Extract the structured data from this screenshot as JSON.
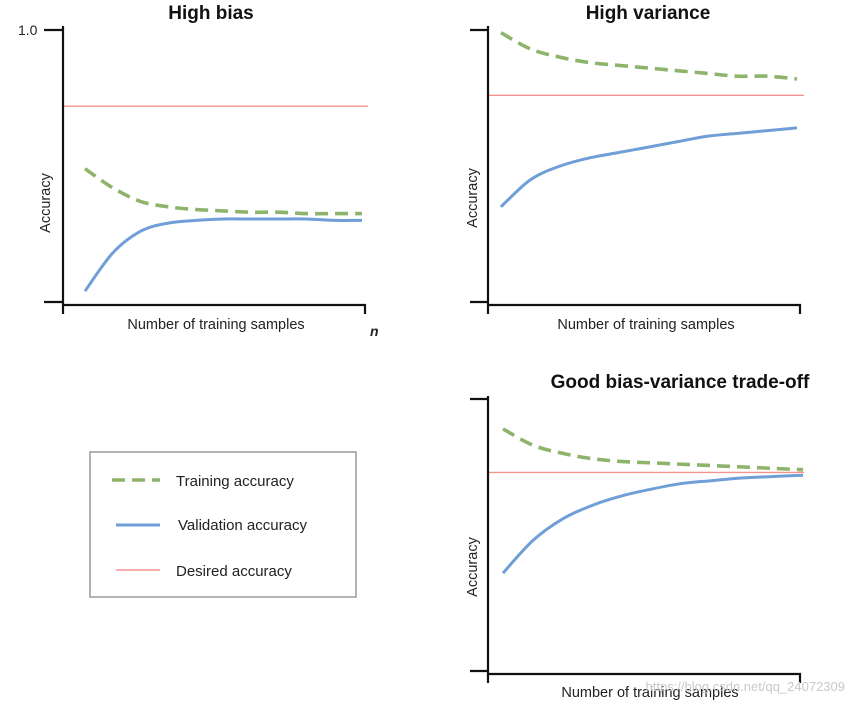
{
  "chart_data": [
    {
      "type": "line",
      "title": "High bias",
      "xlabel": "Number of training samples",
      "ylabel": "Accuracy",
      "y_tick_label": "1.0",
      "x_end_label": "n",
      "ylim": [
        0,
        1
      ],
      "x": [
        0.0,
        0.1,
        0.2,
        0.3,
        0.4,
        0.5,
        0.6,
        0.7,
        0.8,
        0.9,
        1.0
      ],
      "series": [
        {
          "name": "Training accuracy",
          "style": "dashed",
          "color": "#8db46a",
          "values": [
            0.49,
            0.42,
            0.37,
            0.35,
            0.34,
            0.335,
            0.33,
            0.33,
            0.325,
            0.325,
            0.325
          ]
        },
        {
          "name": "Validation accuracy",
          "style": "solid",
          "color": "#6f9fd6",
          "values": [
            0.04,
            0.18,
            0.26,
            0.29,
            0.3,
            0.305,
            0.305,
            0.305,
            0.305,
            0.3,
            0.3
          ]
        },
        {
          "name": "Desired accuracy",
          "style": "solid",
          "color": "#f3928f",
          "values": [
            0.72,
            0.72,
            0.72,
            0.72,
            0.72,
            0.72,
            0.72,
            0.72,
            0.72,
            0.72,
            0.72
          ]
        }
      ]
    },
    {
      "type": "line",
      "title": "High variance",
      "xlabel": "Number of training samples",
      "ylabel": "Accuracy",
      "ylim": [
        0,
        1
      ],
      "x": [
        0.0,
        0.1,
        0.2,
        0.3,
        0.4,
        0.5,
        0.6,
        0.7,
        0.8,
        0.9,
        1.0
      ],
      "series": [
        {
          "name": "Training accuracy",
          "style": "dashed",
          "color": "#8db46a",
          "values": [
            0.99,
            0.93,
            0.9,
            0.88,
            0.87,
            0.86,
            0.85,
            0.84,
            0.83,
            0.83,
            0.82
          ]
        },
        {
          "name": "Validation accuracy",
          "style": "solid",
          "color": "#6f9fd6",
          "values": [
            0.35,
            0.45,
            0.5,
            0.53,
            0.55,
            0.57,
            0.59,
            0.61,
            0.62,
            0.63,
            0.64
          ]
        },
        {
          "name": "Desired accuracy",
          "style": "solid",
          "color": "#f3928f",
          "values": [
            0.76,
            0.76,
            0.76,
            0.76,
            0.76,
            0.76,
            0.76,
            0.76,
            0.76,
            0.76,
            0.76
          ]
        }
      ]
    },
    {
      "type": "line",
      "title": "Good bias-variance trade-off",
      "xlabel": "Number of training samples",
      "ylabel": "Accuracy",
      "ylim": [
        0,
        1
      ],
      "x": [
        0.0,
        0.1,
        0.2,
        0.3,
        0.4,
        0.5,
        0.6,
        0.7,
        0.8,
        0.9,
        1.0
      ],
      "series": [
        {
          "name": "Training accuracy",
          "style": "dashed",
          "color": "#8db46a",
          "values": [
            0.89,
            0.83,
            0.8,
            0.78,
            0.77,
            0.765,
            0.76,
            0.755,
            0.75,
            0.745,
            0.74
          ]
        },
        {
          "name": "Validation accuracy",
          "style": "solid",
          "color": "#6f9fd6",
          "values": [
            0.36,
            0.48,
            0.56,
            0.61,
            0.645,
            0.67,
            0.69,
            0.7,
            0.71,
            0.715,
            0.72
          ]
        },
        {
          "name": "Desired accuracy",
          "style": "solid",
          "color": "#f3928f",
          "values": [
            0.73,
            0.73,
            0.73,
            0.73,
            0.73,
            0.73,
            0.73,
            0.73,
            0.73,
            0.73,
            0.73
          ]
        }
      ]
    }
  ],
  "legend": {
    "items": [
      {
        "label": "Training accuracy",
        "style": "dashed",
        "color": "#8db46a"
      },
      {
        "label": "Validation accuracy",
        "style": "solid",
        "color": "#6f9fd6"
      },
      {
        "label": "Desired accuracy",
        "style": "solid",
        "color": "#f3928f"
      }
    ]
  },
  "watermark": "https://blog.csdn.net/qq_24072309"
}
